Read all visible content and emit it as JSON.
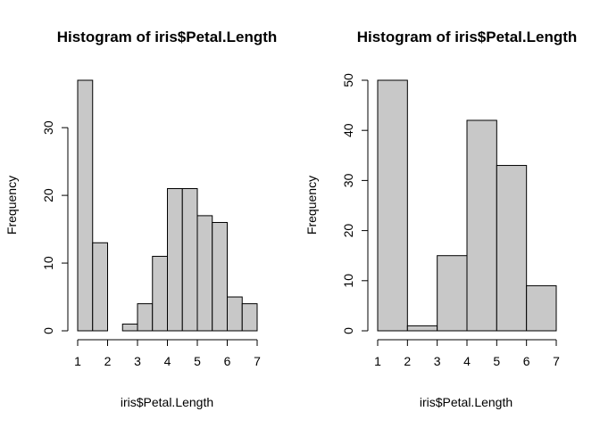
{
  "chart_data": [
    {
      "type": "bar",
      "title": "Histogram of iris$Petal.Length",
      "xlabel": "iris$Petal.Length",
      "ylabel": "Frequency",
      "bin_edges": [
        1,
        1.5,
        2,
        2.5,
        3,
        3.5,
        4,
        4.5,
        5,
        5.5,
        6,
        6.5,
        7
      ],
      "values": [
        37,
        13,
        0,
        1,
        4,
        11,
        21,
        21,
        17,
        16,
        5,
        4
      ],
      "xlim": [
        1,
        7
      ],
      "ylim": [
        0,
        37
      ],
      "xticks": [
        1,
        2,
        3,
        4,
        5,
        6,
        7
      ],
      "yticks": [
        0,
        10,
        20,
        30
      ],
      "grid": false
    },
    {
      "type": "bar",
      "title": "Histogram of iris$Petal.Length",
      "xlabel": "iris$Petal.Length",
      "ylabel": "Frequency",
      "bin_edges": [
        1,
        2,
        3,
        4,
        5,
        6,
        7
      ],
      "values": [
        50,
        1,
        15,
        42,
        33,
        9
      ],
      "xlim": [
        1,
        7
      ],
      "ylim": [
        0,
        50
      ],
      "xticks": [
        1,
        2,
        3,
        4,
        5,
        6,
        7
      ],
      "yticks": [
        0,
        10,
        20,
        30,
        40,
        50
      ],
      "grid": false
    }
  ]
}
